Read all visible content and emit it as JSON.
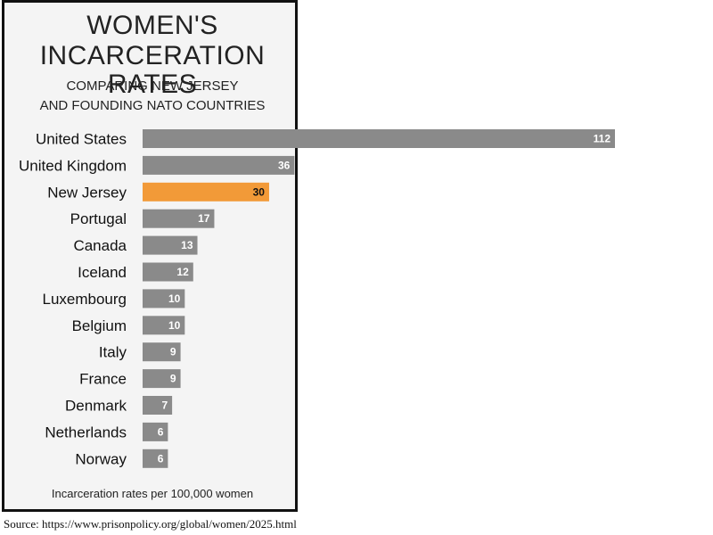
{
  "chart_data": {
    "type": "bar",
    "orientation": "horizontal",
    "title": "WOMEN'S INCARCERATION RATES",
    "title_lines": [
      "WOMEN'S",
      "INCARCERATION RATES"
    ],
    "subtitle": "COMPARING NEW JERSEY AND FOUNDING NATO COUNTRIES",
    "subtitle_lines": [
      "COMPARING NEW JERSEY",
      "AND FOUNDING NATO COUNTRIES"
    ],
    "categories": [
      "United States",
      "United Kingdom",
      "New Jersey",
      "Portugal",
      "Canada",
      "Iceland",
      "Luxembourg",
      "Belgium",
      "Italy",
      "France",
      "Denmark",
      "Netherlands",
      "Norway"
    ],
    "values": [
      112,
      36,
      30,
      17,
      13,
      12,
      10,
      10,
      9,
      9,
      7,
      6,
      6
    ],
    "highlight": "New Jersey",
    "colors": {
      "bar": "#8a8a8a",
      "highlight": "#f29a38",
      "label_on_bar": "#ffffff",
      "label_on_highlight": "#111111"
    },
    "xlim": [
      0,
      112
    ],
    "footnote": "Incarceration rates per 100,000 women",
    "grid": false,
    "legend": "none"
  },
  "source": "Source: https://www.prisonpolicy.org/global/women/2025.html"
}
